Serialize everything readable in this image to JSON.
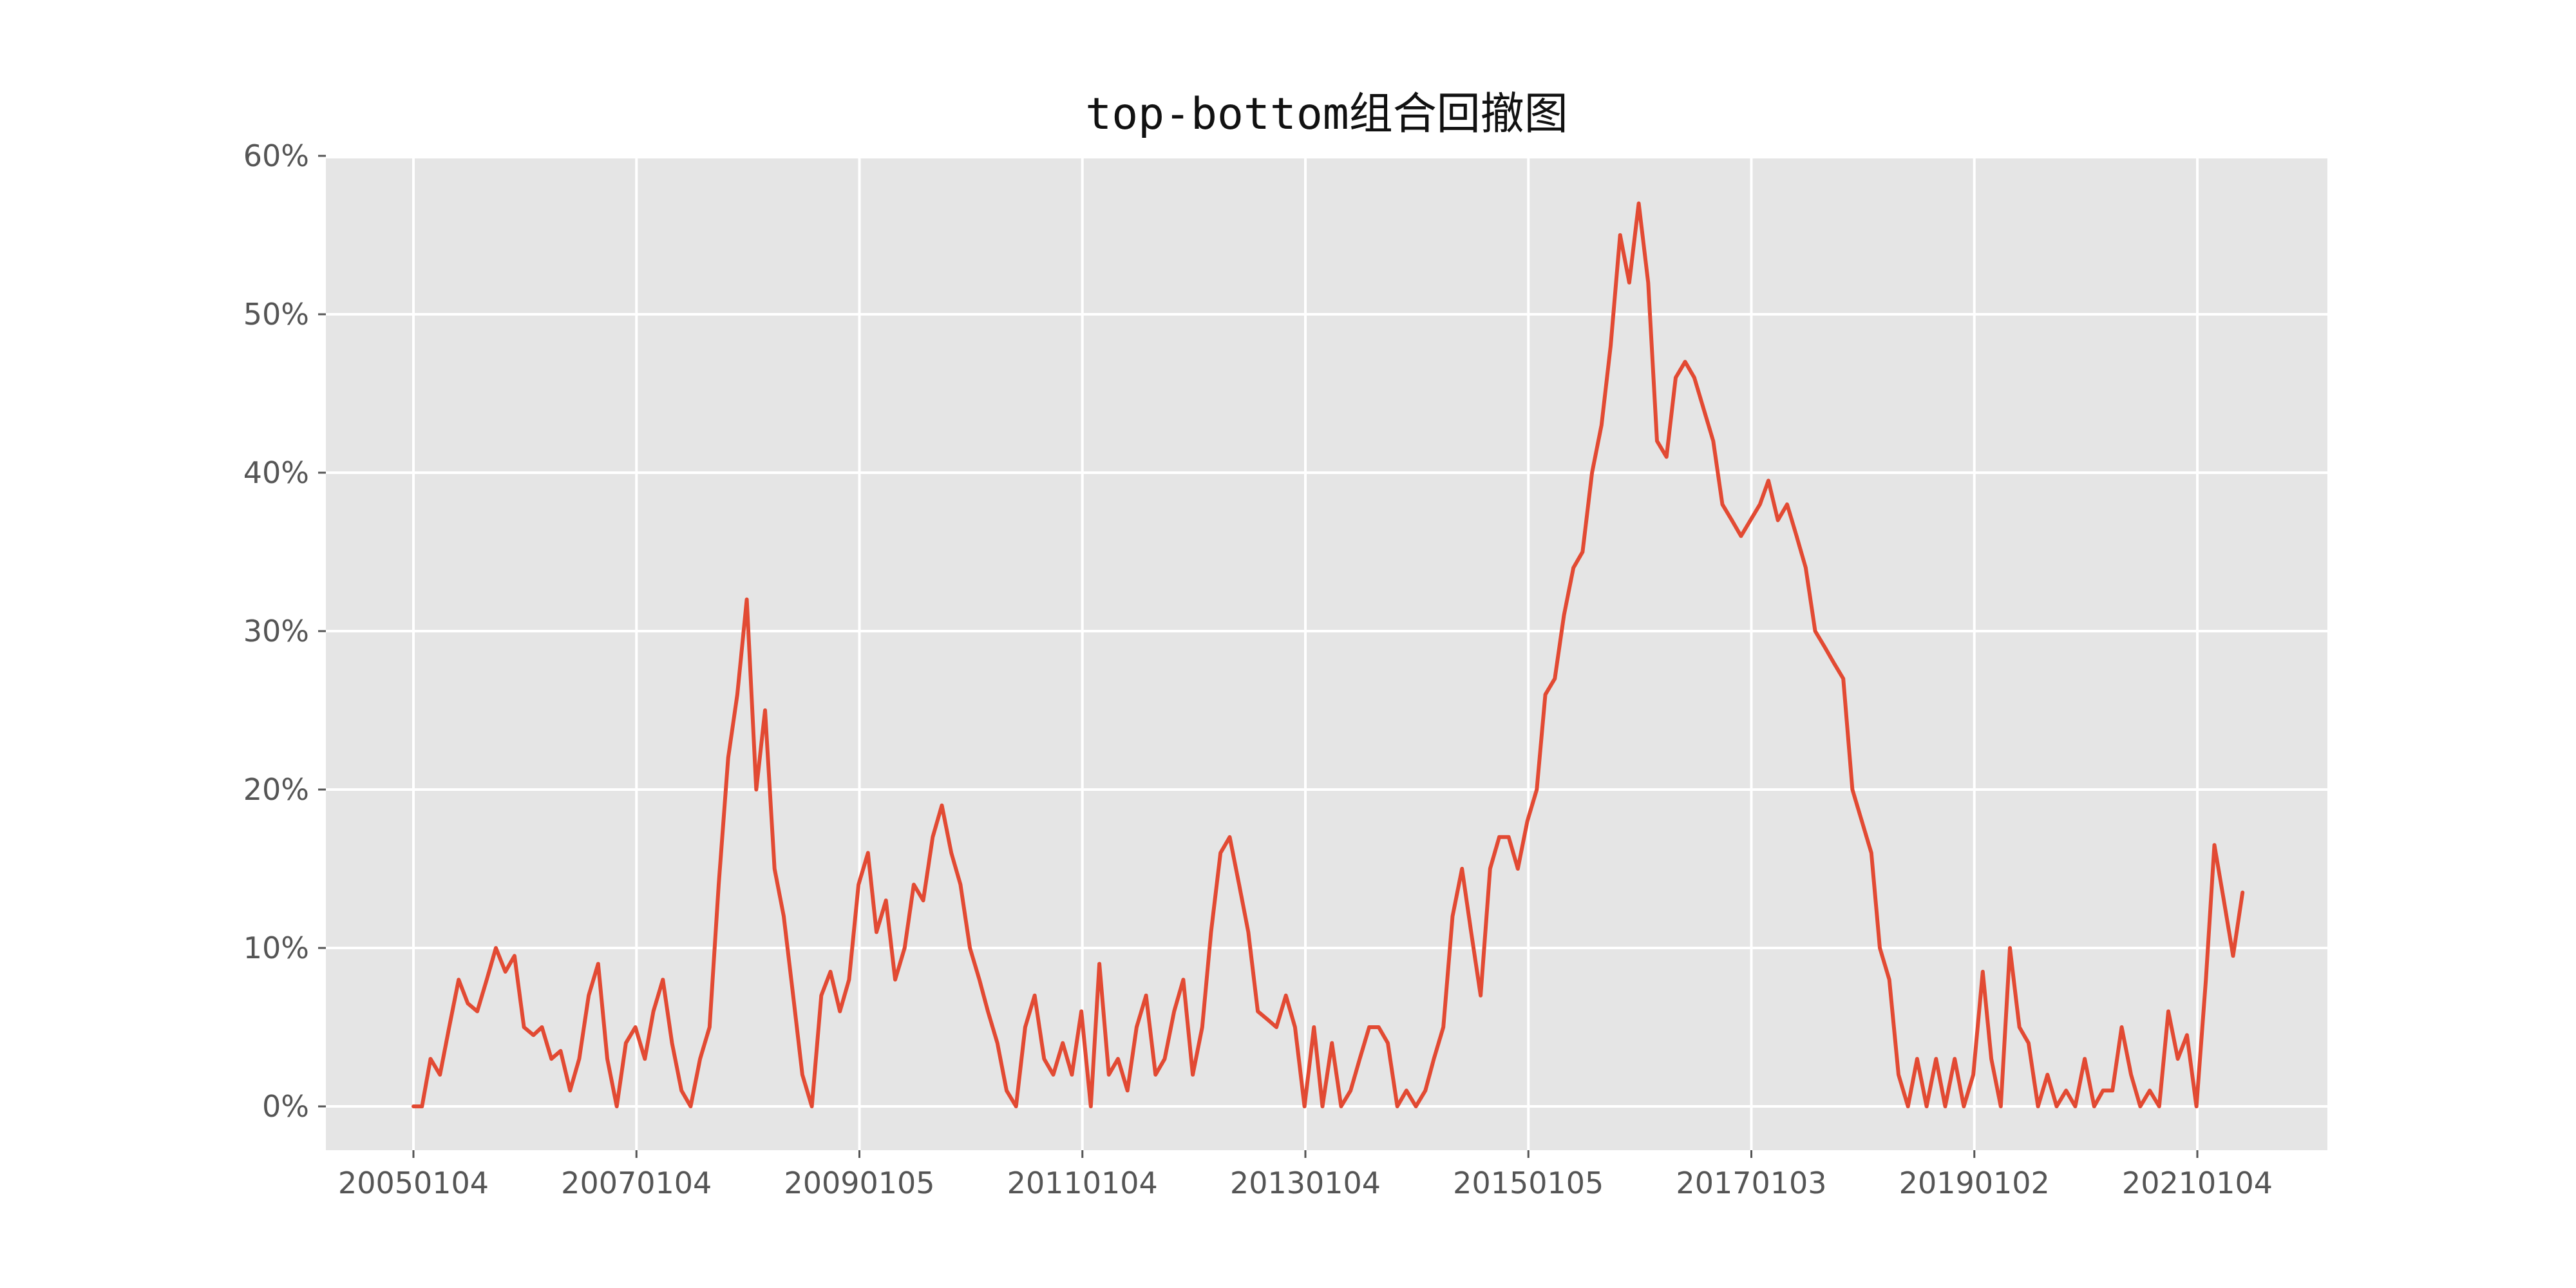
{
  "chart_data": {
    "type": "line",
    "title": "top-bottom组合回撤图",
    "xlabel": "",
    "ylabel": "",
    "x_ticks": [
      "20050104",
      "20070104",
      "20090105",
      "20110104",
      "20130104",
      "20150105",
      "20170103",
      "20190102",
      "20210104"
    ],
    "y_ticks": [
      "0%",
      "10%",
      "20%",
      "30%",
      "40%",
      "50%",
      "60%"
    ],
    "ylim": [
      -0.028,
      0.6
    ],
    "y_format": "percent",
    "grid": true,
    "legend": "none",
    "colors": {
      "line": "#E24A33",
      "plot_background": "#E5E5E5",
      "grid": "#FFFFFF",
      "tick_text": "#555555"
    },
    "series": [
      {
        "x": [
          "2005-01-04",
          "2005-02-01",
          "2005-03-01",
          "2005-04-01",
          "2005-05-01",
          "2005-06-01",
          "2005-07-01",
          "2005-08-01",
          "2005-09-01",
          "2005-10-01",
          "2005-11-01",
          "2005-12-01",
          "2006-01-01",
          "2006-02-01",
          "2006-03-01",
          "2006-04-01",
          "2006-05-01",
          "2006-06-01",
          "2006-07-01",
          "2006-08-01",
          "2006-09-01",
          "2006-10-01",
          "2006-11-01",
          "2006-12-01",
          "2007-01-01",
          "2007-02-01",
          "2007-03-01",
          "2007-04-01",
          "2007-05-01",
          "2007-06-01",
          "2007-07-01",
          "2007-08-01",
          "2007-09-01",
          "2007-10-01",
          "2007-11-01",
          "2007-12-01",
          "2008-01-01",
          "2008-02-01",
          "2008-03-01",
          "2008-04-01",
          "2008-05-01",
          "2008-06-01",
          "2008-07-01",
          "2008-08-01",
          "2008-09-01",
          "2008-10-01",
          "2008-11-01",
          "2008-12-01",
          "2009-01-01",
          "2009-02-01",
          "2009-03-01",
          "2009-04-01",
          "2009-05-01",
          "2009-06-01",
          "2009-07-01",
          "2009-08-01",
          "2009-09-01",
          "2009-10-01",
          "2009-11-01",
          "2009-12-01",
          "2010-01-01",
          "2010-02-01",
          "2010-03-01",
          "2010-04-01",
          "2010-05-01",
          "2010-06-01",
          "2010-07-01",
          "2010-08-01",
          "2010-09-01",
          "2010-10-01",
          "2010-11-01",
          "2010-12-01",
          "2011-01-01",
          "2011-02-01",
          "2011-03-01",
          "2011-04-01",
          "2011-05-01",
          "2011-06-01",
          "2011-07-01",
          "2011-08-01",
          "2011-09-01",
          "2011-10-01",
          "2011-11-01",
          "2011-12-01",
          "2012-01-01",
          "2012-02-01",
          "2012-03-01",
          "2012-04-01",
          "2012-05-01",
          "2012-06-01",
          "2012-07-01",
          "2012-08-01",
          "2012-09-01",
          "2012-10-01",
          "2012-11-01",
          "2012-12-01",
          "2013-01-01",
          "2013-02-01",
          "2013-03-01",
          "2013-04-01",
          "2013-05-01",
          "2013-06-01",
          "2013-07-01",
          "2013-08-01",
          "2013-09-01",
          "2013-10-01",
          "2013-11-01",
          "2013-12-01",
          "2014-01-01",
          "2014-02-01",
          "2014-03-01",
          "2014-04-01",
          "2014-05-01",
          "2014-06-01",
          "2014-07-01",
          "2014-08-01",
          "2014-09-01",
          "2014-10-01",
          "2014-11-01",
          "2014-12-01",
          "2015-01-01",
          "2015-02-01",
          "2015-03-01",
          "2015-04-01",
          "2015-05-01",
          "2015-06-01",
          "2015-07-01",
          "2015-08-01",
          "2015-09-01",
          "2015-10-01",
          "2015-11-01",
          "2015-12-01",
          "2016-01-01",
          "2016-02-01",
          "2016-03-01",
          "2016-04-01",
          "2016-05-01",
          "2016-06-01",
          "2016-07-01",
          "2016-08-01",
          "2016-09-01",
          "2016-10-01",
          "2016-11-01",
          "2016-12-01",
          "2017-01-01",
          "2017-02-01",
          "2017-03-01",
          "2017-04-01",
          "2017-05-01",
          "2017-06-01",
          "2017-07-01",
          "2017-08-01",
          "2017-09-01",
          "2017-10-01",
          "2017-11-01",
          "2017-12-01",
          "2018-01-01",
          "2018-02-01",
          "2018-03-01",
          "2018-04-01",
          "2018-05-01",
          "2018-06-01",
          "2018-07-01",
          "2018-08-01",
          "2018-09-01",
          "2018-10-01",
          "2018-11-01",
          "2018-12-01",
          "2019-01-01",
          "2019-02-01",
          "2019-03-01",
          "2019-04-01",
          "2019-05-01",
          "2019-06-01",
          "2019-07-01",
          "2019-08-01",
          "2019-09-01",
          "2019-10-01",
          "2019-11-01",
          "2019-12-01",
          "2020-01-01",
          "2020-02-01",
          "2020-03-01",
          "2020-04-01",
          "2020-05-01",
          "2020-06-01",
          "2020-07-01",
          "2020-08-01",
          "2020-09-01",
          "2020-10-01",
          "2020-11-01",
          "2020-12-01",
          "2021-01-01",
          "2021-02-01",
          "2021-03-01",
          "2021-04-01",
          "2021-05-01",
          "2021-06-01"
        ],
        "values": [
          0.0,
          0.0,
          0.03,
          0.02,
          0.05,
          0.08,
          0.065,
          0.06,
          0.08,
          0.1,
          0.085,
          0.095,
          0.05,
          0.045,
          0.05,
          0.03,
          0.035,
          0.01,
          0.03,
          0.07,
          0.09,
          0.03,
          0.0,
          0.04,
          0.05,
          0.03,
          0.06,
          0.08,
          0.04,
          0.01,
          0.0,
          0.03,
          0.05,
          0.14,
          0.22,
          0.26,
          0.32,
          0.2,
          0.25,
          0.15,
          0.12,
          0.07,
          0.02,
          0.0,
          0.07,
          0.085,
          0.06,
          0.08,
          0.14,
          0.16,
          0.11,
          0.13,
          0.08,
          0.1,
          0.14,
          0.13,
          0.17,
          0.19,
          0.16,
          0.14,
          0.1,
          0.08,
          0.06,
          0.04,
          0.01,
          0.0,
          0.05,
          0.07,
          0.03,
          0.02,
          0.04,
          0.02,
          0.06,
          0.0,
          0.09,
          0.02,
          0.03,
          0.01,
          0.05,
          0.07,
          0.02,
          0.03,
          0.06,
          0.08,
          0.02,
          0.05,
          0.11,
          0.16,
          0.17,
          0.14,
          0.11,
          0.06,
          0.055,
          0.05,
          0.07,
          0.05,
          0.0,
          0.05,
          0.0,
          0.04,
          0.0,
          0.01,
          0.03,
          0.05,
          0.05,
          0.04,
          0.0,
          0.01,
          0.0,
          0.01,
          0.03,
          0.05,
          0.12,
          0.15,
          0.11,
          0.07,
          0.15,
          0.17,
          0.17,
          0.15,
          0.18,
          0.2,
          0.26,
          0.27,
          0.31,
          0.34,
          0.35,
          0.4,
          0.43,
          0.48,
          0.55,
          0.52,
          0.57,
          0.52,
          0.42,
          0.41,
          0.46,
          0.47,
          0.46,
          0.44,
          0.42,
          0.38,
          0.37,
          0.36,
          0.37,
          0.38,
          0.395,
          0.37,
          0.38,
          0.36,
          0.34,
          0.3,
          0.29,
          0.28,
          0.27,
          0.2,
          0.18,
          0.16,
          0.1,
          0.08,
          0.02,
          0.0,
          0.03,
          0.0,
          0.03,
          0.0,
          0.03,
          0.0,
          0.02,
          0.085,
          0.03,
          0.0,
          0.1,
          0.05,
          0.04,
          0.0,
          0.02,
          0.0,
          0.01,
          0.0,
          0.03,
          0.0,
          0.01,
          0.01,
          0.05,
          0.02,
          0.0,
          0.01,
          0.0,
          0.06,
          0.03,
          0.045,
          0.0,
          0.08,
          0.165,
          0.13,
          0.095,
          0.135
        ]
      }
    ]
  }
}
